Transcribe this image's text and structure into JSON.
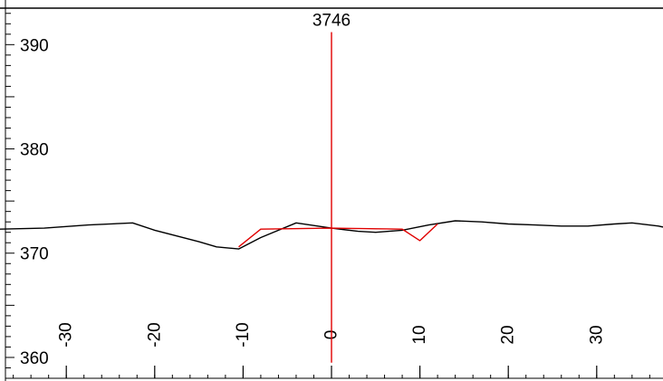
{
  "chart_data": {
    "type": "line",
    "title": "",
    "xlabel": "",
    "ylabel": "",
    "xlim": [
      -37.5,
      37.5
    ],
    "ylim": [
      358,
      393.5
    ],
    "x_ticks": [
      -30,
      -20,
      -10,
      0,
      10,
      20,
      30
    ],
    "x_tick_labels": [
      "-30",
      "-20",
      "-10",
      "0",
      "10",
      "20",
      "30"
    ],
    "y_ticks": [
      360,
      370,
      380,
      390
    ],
    "y_tick_labels": [
      "360",
      "370",
      "380",
      "390"
    ],
    "grid": false,
    "legend": "none",
    "marker": {
      "label": "3746",
      "x": 0,
      "y_from": 359.5,
      "y_to": 391.2,
      "color": "#e00000"
    },
    "series": [
      {
        "color": "#000000",
        "points": [
          [
            -37.5,
            372.3
          ],
          [
            -32.5,
            372.4
          ],
          [
            -27.5,
            372.7
          ],
          [
            -22.5,
            372.9
          ],
          [
            -20,
            372.2
          ],
          [
            -15,
            371.1
          ],
          [
            -13,
            370.6
          ],
          [
            -10.5,
            370.4
          ],
          [
            -8,
            371.5
          ],
          [
            -4,
            372.9
          ],
          [
            0,
            372.4
          ],
          [
            3,
            372.1
          ],
          [
            5,
            372.0
          ],
          [
            8,
            372.2
          ],
          [
            11,
            372.7
          ],
          [
            14,
            373.1
          ],
          [
            17,
            373.0
          ],
          [
            20,
            372.8
          ],
          [
            23,
            372.7
          ],
          [
            26,
            372.6
          ],
          [
            29,
            372.6
          ],
          [
            32,
            372.8
          ],
          [
            34,
            372.9
          ],
          [
            37,
            372.6
          ],
          [
            37.5,
            372.5
          ]
        ]
      },
      {
        "color": "#e00000",
        "points": [
          [
            -10.5,
            370.6
          ],
          [
            -8,
            372.3
          ],
          [
            0,
            372.4
          ],
          [
            8,
            372.3
          ],
          [
            10,
            371.2
          ],
          [
            12,
            372.8
          ]
        ]
      }
    ]
  }
}
